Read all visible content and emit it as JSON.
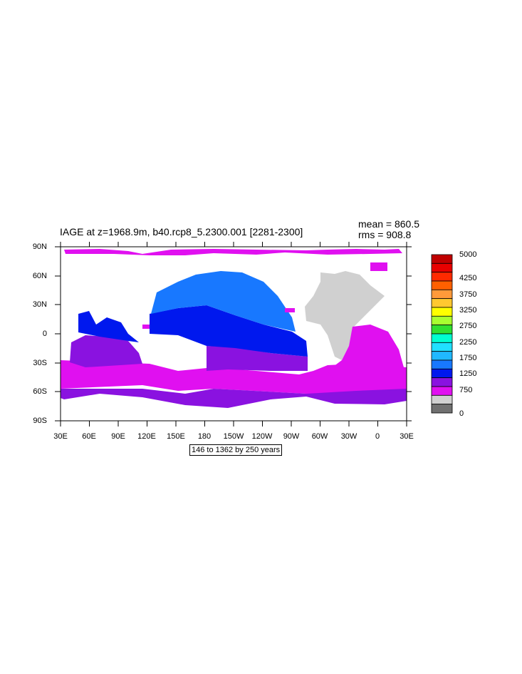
{
  "title": "IAGE at z=1968.9m, b40.rcp8_5.2300.001 [2281-2300]",
  "stats": {
    "mean": "mean = 860.5",
    "rms": "rms = 908.8"
  },
  "y_ticks": [
    "90N",
    "60N",
    "30N",
    "0",
    "30S",
    "60S",
    "90S"
  ],
  "x_ticks": [
    "30E",
    "60E",
    "90E",
    "120E",
    "150E",
    "180",
    "150W",
    "120W",
    "90W",
    "60W",
    "30W",
    "0",
    "30E"
  ],
  "contour_info": "146 to 1362 by 250 years",
  "colorbar": {
    "labels": [
      "5000",
      "4250",
      "3750",
      "3250",
      "2750",
      "2250",
      "1750",
      "1250",
      "750",
      "0"
    ],
    "colors": [
      "#c00000",
      "#e80000",
      "#ff2a00",
      "#ff6000",
      "#ff9a3a",
      "#ffc830",
      "#ffff00",
      "#a8ff30",
      "#30e030",
      "#00ffd0",
      "#20e0ff",
      "#20b8ff",
      "#1878ff",
      "#0018ee",
      "#8a12e0",
      "#e010f0",
      "#d0d0d0",
      "#707070"
    ]
  },
  "land_color": "#ffffff",
  "missing_color": "#d0d0d0"
}
